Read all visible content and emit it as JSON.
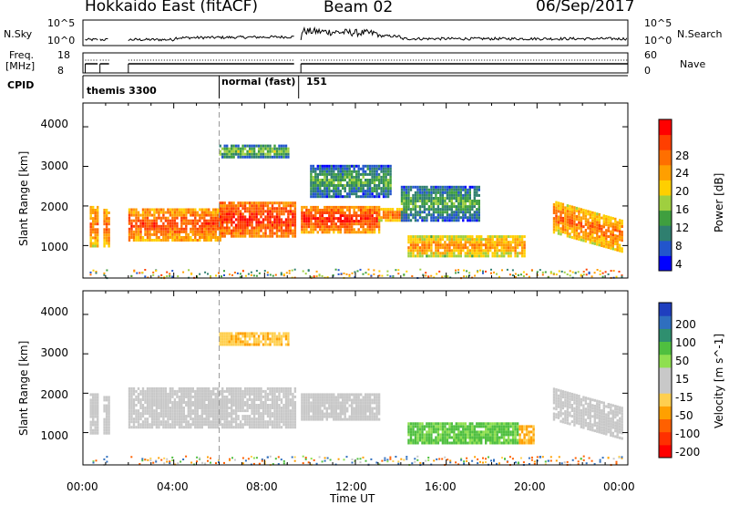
{
  "header": {
    "station": "Hokkaido East (fitACF)",
    "beam": "Beam 02",
    "date": "06/Sep/2017"
  },
  "noise_panel": {
    "left_label": "N.Sky",
    "right_label": "N.Search",
    "left_ticks": [
      "10^5",
      "10^0"
    ],
    "right_ticks": [
      "10^5",
      "10^0"
    ]
  },
  "freq_panel": {
    "left_label_1": "Freq.",
    "left_label_2": "[MHz]",
    "right_label": "Nave",
    "left_ticks": [
      "18",
      "8"
    ],
    "right_ticks": [
      "60",
      "0"
    ]
  },
  "cpid": {
    "label": "CPID",
    "segments": [
      {
        "start_h": 0.0,
        "text": "themis 3300"
      },
      {
        "start_h": 6.0,
        "text": "normal (fast)"
      },
      {
        "start_h": 9.5,
        "text": "151"
      }
    ]
  },
  "x_axis": {
    "label": "Time UT",
    "ticks": [
      "00:00",
      "04:00",
      "08:00",
      "12:00",
      "16:00",
      "20:00",
      "00:00"
    ],
    "range_hours": [
      0,
      24
    ]
  },
  "y_axis": {
    "label": "Slant Range [km]",
    "ticks": [
      "1000",
      "2000",
      "3000",
      "4000"
    ],
    "range_km": [
      180,
      4600
    ]
  },
  "power_colorbar": {
    "label": "Power [dB]",
    "ticks": [
      "4",
      "8",
      "12",
      "16",
      "20",
      "24",
      "28"
    ],
    "colors": [
      "#0000ff",
      "#2255cc",
      "#2f7f6f",
      "#3f9f3f",
      "#9fcf3f",
      "#ffcf00",
      "#ff9f00",
      "#ff6f00",
      "#ff3f00",
      "#ff0000"
    ]
  },
  "velocity_colorbar": {
    "label": "Velocity [m s^-1]",
    "ticks": [
      "200",
      "100",
      "50",
      "15",
      "-15",
      "-50",
      "-100",
      "-200"
    ],
    "colors": [
      "#1f3fbf",
      "#2f6fbf",
      "#2f8f6f",
      "#4fbf3f",
      "#8fdf4f",
      "#c8c8c8",
      "#c8c8c8",
      "#ffcf4f",
      "#ffa000",
      "#ff6000",
      "#ff3000",
      "#ff0000"
    ]
  },
  "chart_data": [
    {
      "type": "heatmap",
      "title": "Power",
      "xlabel": "Time UT",
      "ylabel": "Slant Range [km]",
      "xlim": [
        0,
        24
      ],
      "ylim": [
        180,
        4600
      ],
      "colorbar_label": "Power [dB]",
      "regions": [
        {
          "t0": 0.3,
          "t1": 0.7,
          "r0": 950,
          "r1": 2000,
          "power": 24
        },
        {
          "t0": 0.9,
          "t1": 1.2,
          "r0": 950,
          "r1": 1900,
          "power": 24
        },
        {
          "t0": 2.0,
          "t1": 6.0,
          "r0": 1100,
          "r1": 1900,
          "power": 26
        },
        {
          "t0": 6.0,
          "t1": 9.3,
          "r0": 1200,
          "r1": 2100,
          "power": 28
        },
        {
          "t0": 9.6,
          "t1": 13.0,
          "r0": 1300,
          "r1": 2000,
          "power": 27
        },
        {
          "t0": 13.0,
          "t1": 14.2,
          "r0": 1600,
          "r1": 1900,
          "power": 24
        },
        {
          "t0": 14.3,
          "t1": 19.5,
          "r0": 700,
          "r1": 1200,
          "power": 22
        },
        {
          "t0": 20.7,
          "t1": 23.8,
          "r0": 1300,
          "r1": 2100,
          "power": 24
        },
        {
          "t0": 6.0,
          "t1": 9.0,
          "r0": 3200,
          "r1": 3500,
          "power": 14
        },
        {
          "t0": 10.0,
          "t1": 13.5,
          "r0": 2200,
          "r1": 3000,
          "power": 12
        },
        {
          "t0": 14.0,
          "t1": 17.5,
          "r0": 1600,
          "r1": 2500,
          "power": 12
        }
      ]
    },
    {
      "type": "heatmap",
      "title": "Velocity",
      "xlabel": "Time UT",
      "ylabel": "Slant Range [km]",
      "xlim": [
        0,
        24
      ],
      "ylim": [
        180,
        4600
      ],
      "colorbar_label": "Velocity [m s^-1]",
      "regions": [
        {
          "t0": 0.3,
          "t1": 0.7,
          "r0": 950,
          "r1": 2000,
          "velocity": 0
        },
        {
          "t0": 0.9,
          "t1": 1.2,
          "r0": 950,
          "r1": 1900,
          "velocity": 0
        },
        {
          "t0": 2.0,
          "t1": 9.3,
          "r0": 1100,
          "r1": 2100,
          "velocity": 0
        },
        {
          "t0": 9.6,
          "t1": 13.0,
          "r0": 1300,
          "r1": 2000,
          "velocity": 0
        },
        {
          "t0": 14.3,
          "t1": 19.2,
          "r0": 700,
          "r1": 1200,
          "velocity": 40
        },
        {
          "t0": 19.2,
          "t1": 19.9,
          "r0": 700,
          "r1": 1150,
          "velocity": -40
        },
        {
          "t0": 20.7,
          "t1": 23.8,
          "r0": 1300,
          "r1": 2100,
          "velocity": 0
        },
        {
          "t0": 6.0,
          "t1": 9.0,
          "r0": 3200,
          "r1": 3500,
          "velocity": -30
        }
      ]
    }
  ]
}
